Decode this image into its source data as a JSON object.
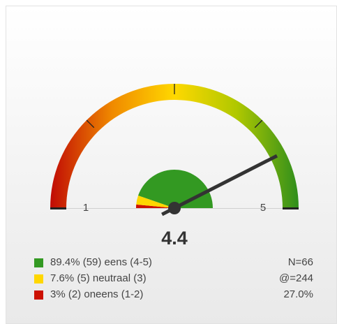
{
  "chart_data": {
    "type": "gauge",
    "value": 4.4,
    "xlim": [
      1,
      5
    ],
    "xticks": [
      2,
      3,
      4
    ],
    "categories": [
      "89.4% (59) eens (4-5)",
      "7.6% (5) neutraal (3)",
      "3% (2) oneens (1-2)"
    ],
    "values": [
      89.4,
      7.6,
      3
    ],
    "colors": [
      "#339922",
      "#ffd700",
      "#cc1100"
    ],
    "stats": [
      "N=66",
      "@=244",
      "27.0%"
    ]
  }
}
